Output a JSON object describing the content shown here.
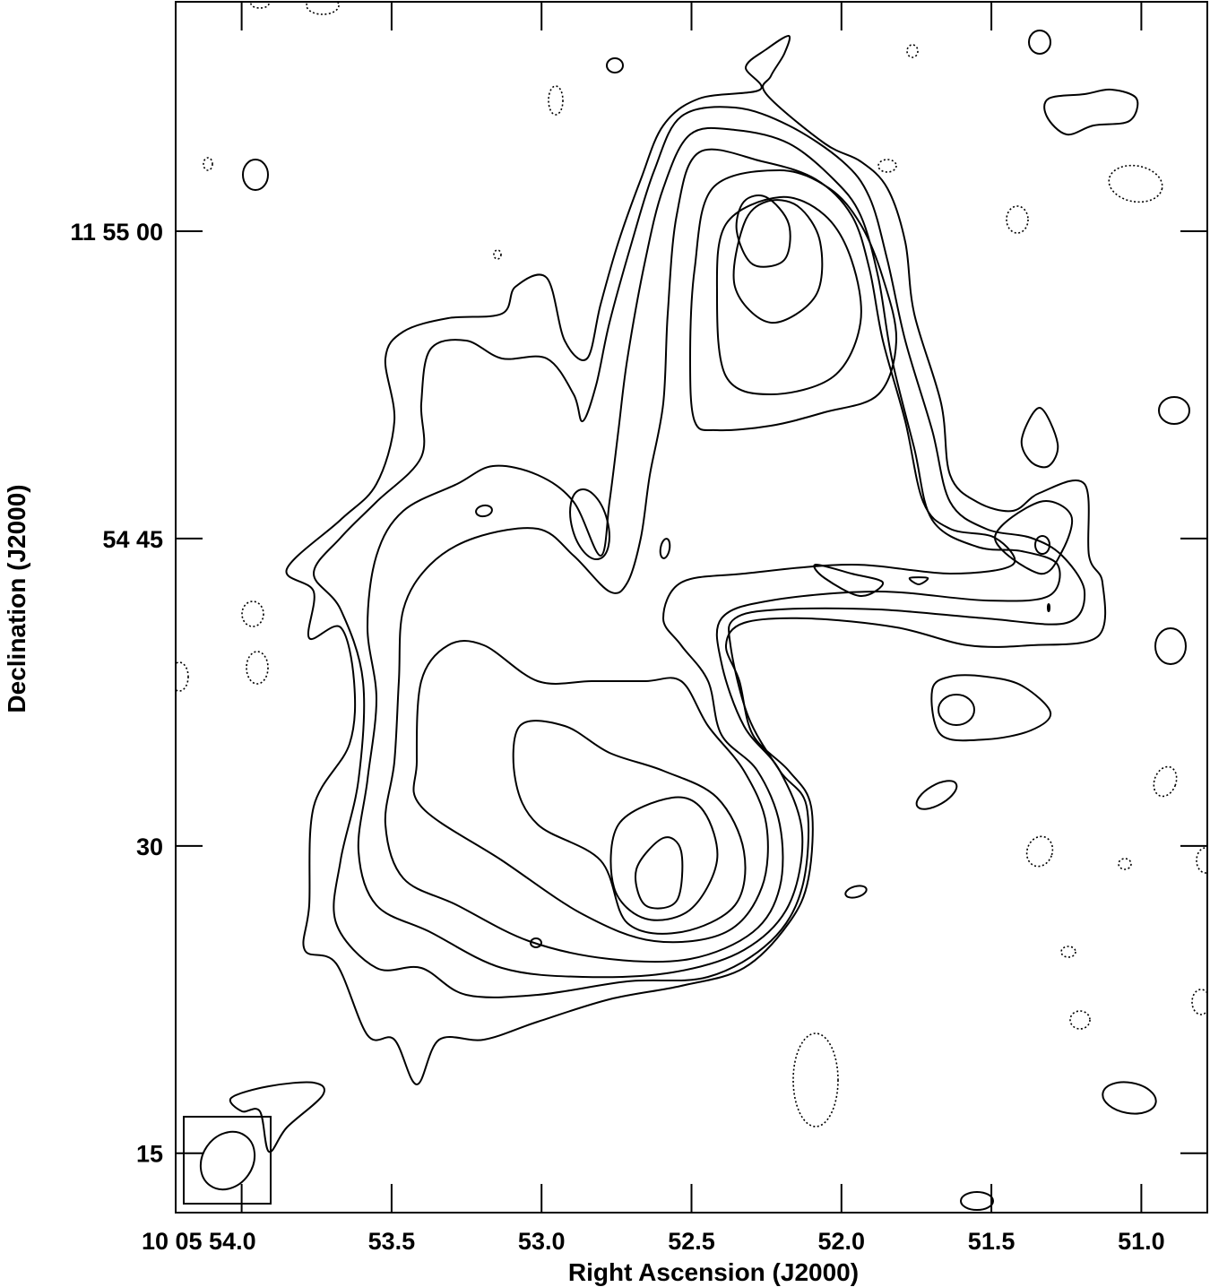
{
  "chart_data": {
    "type": "contour",
    "title": "",
    "xlabel": "Right Ascension (J2000)",
    "ylabel": "Declination (J2000)",
    "x_ticks": [
      {
        "value": 54.0,
        "label": "10 05 54.0"
      },
      {
        "value": 53.5,
        "label": "53.5"
      },
      {
        "value": 53.0,
        "label": "53.0"
      },
      {
        "value": 52.5,
        "label": "52.5"
      },
      {
        "value": 52.0,
        "label": "52.0"
      },
      {
        "value": 51.5,
        "label": "51.5"
      },
      {
        "value": 51.0,
        "label": "51.0"
      }
    ],
    "y_ticks": [
      {
        "value": 60,
        "label": "11 55 00"
      },
      {
        "value": 45,
        "label": "54 45"
      },
      {
        "value": 30,
        "label": "30"
      },
      {
        "value": 15,
        "label": "15"
      }
    ],
    "xlim": [
      54.22,
      50.78
    ],
    "ylim": [
      12.1,
      71.2
    ],
    "x_reversed": true,
    "negative_contours": "dotted",
    "positive_contours": "solid",
    "beam": {
      "shown": true,
      "placement": "bottom-left"
    },
    "grid": false,
    "line_color": "#000000",
    "background": "#ffffff"
  }
}
